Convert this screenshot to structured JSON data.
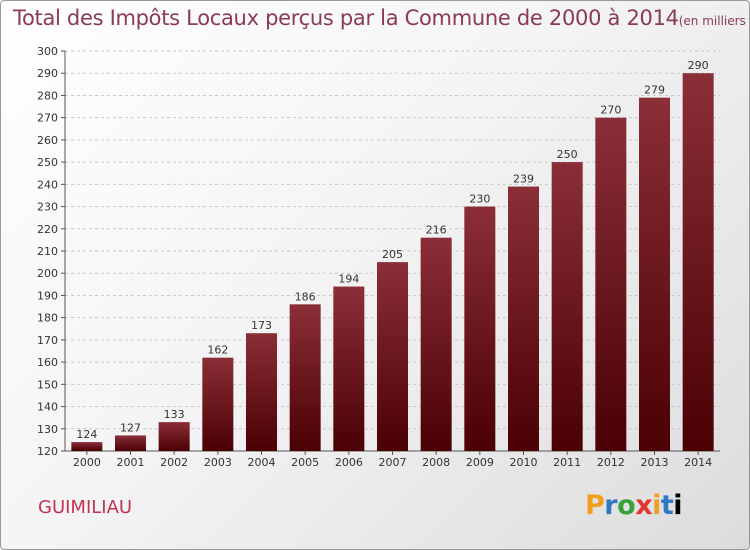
{
  "header": {
    "title": "Total des Impôts Locaux perçus par la Commune de 2000 à 2014",
    "unit": "(en milliers d'€)"
  },
  "footer": {
    "commune": "GUIMILIAU",
    "logo": "Proxiti"
  },
  "chart_data": {
    "type": "bar",
    "title": "Total des Impôts Locaux perçus par la Commune de 2000 à 2014",
    "unit_label": "(en milliers d'€)",
    "xlabel": "",
    "ylabel": "",
    "categories": [
      "2000",
      "2001",
      "2002",
      "2003",
      "2004",
      "2005",
      "2006",
      "2007",
      "2008",
      "2009",
      "2010",
      "2011",
      "2012",
      "2013",
      "2014"
    ],
    "values": [
      124,
      127,
      133,
      162,
      173,
      186,
      194,
      205,
      216,
      230,
      239,
      250,
      270,
      279,
      290
    ],
    "ylim": [
      120,
      300
    ],
    "yticks": [
      120,
      130,
      140,
      150,
      160,
      170,
      180,
      190,
      200,
      210,
      220,
      230,
      240,
      250,
      260,
      270,
      280,
      290,
      300
    ],
    "grid": "horizontal-dashed",
    "data_labels": true,
    "colors": {
      "bar_top": "#8b2e38",
      "bar_bottom": "#4a0004",
      "title": "#8a3b52",
      "commune": "#c2334f"
    }
  }
}
